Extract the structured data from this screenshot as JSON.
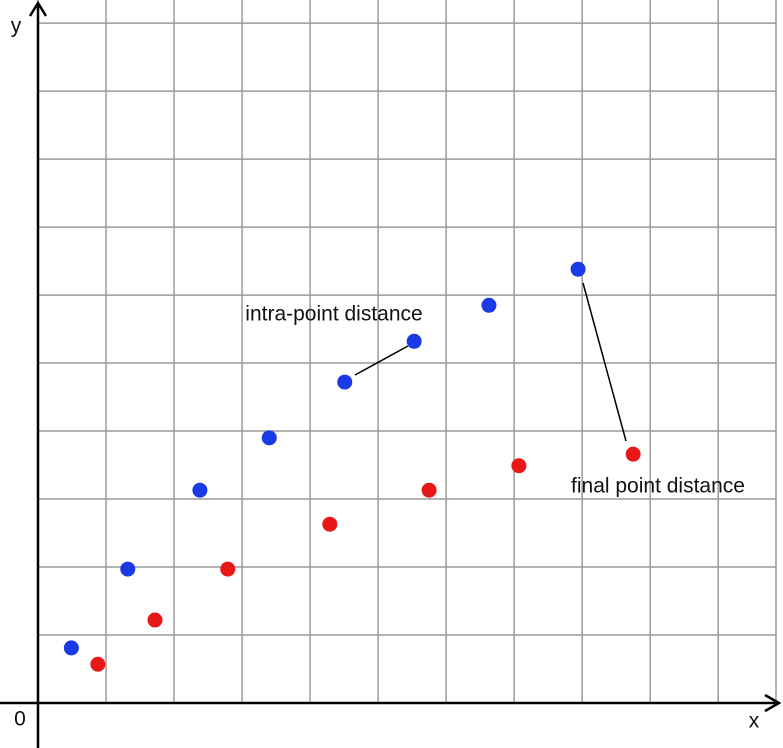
{
  "chart_data": {
    "type": "scatter",
    "x_label": "x",
    "y_label": "y",
    "origin_label": "0",
    "xlim": [
      0,
      10.85
    ],
    "ylim": [
      0,
      10.34
    ],
    "grid": true,
    "gridlines": {
      "x": [
        0,
        1,
        2,
        3,
        4,
        5,
        6,
        7,
        8,
        9,
        10
      ],
      "y": [
        0,
        1,
        2,
        3,
        4,
        5,
        6,
        7,
        8,
        9,
        10
      ]
    },
    "series": [
      {
        "color": "#1a3ae6",
        "x": [
          0.49,
          1.32,
          2.38,
          3.4,
          4.51,
          5.53,
          6.63,
          7.94
        ],
        "values": [
          0.81,
          1.97,
          3.13,
          3.9,
          4.72,
          5.32,
          5.85,
          6.38
        ]
      },
      {
        "color": "#e81818",
        "x": [
          0.88,
          1.72,
          2.79,
          4.29,
          5.75,
          7.07,
          8.75
        ],
        "values": [
          0.57,
          1.22,
          1.97,
          2.63,
          3.13,
          3.49,
          3.66
        ]
      }
    ],
    "annotations": [
      "intra-point distance",
      "final point distance"
    ]
  }
}
